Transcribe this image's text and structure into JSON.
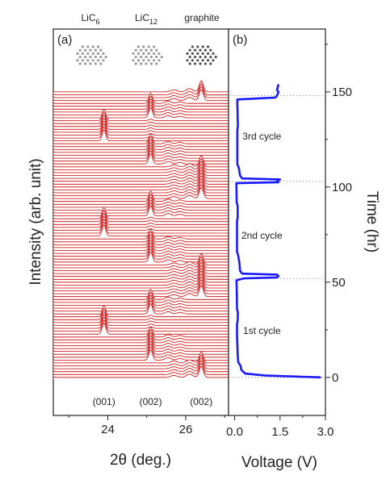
{
  "chart_data": [
    {
      "panel_label": "(a)",
      "type": "line",
      "xlabel": "2θ (deg.)",
      "ylabel": "Intensity (arb. unit)",
      "xlim": [
        22.6,
        27.1
      ],
      "xticks": [
        24,
        26
      ],
      "phases": [
        {
          "label": "LiC",
          "sub": "6"
        },
        {
          "label": "LiC",
          "sub": "12"
        },
        {
          "label": "graphite",
          "sub": ""
        }
      ],
      "reflections": [
        {
          "label": "(001)",
          "x": 23.9
        },
        {
          "label": "(002)",
          "x": 25.1
        },
        {
          "label": "(002)",
          "x": 26.4
        }
      ],
      "stack": {
        "count": 100,
        "time_range_hr": [
          0,
          150
        ]
      },
      "series_color": "#cc0000"
    },
    {
      "panel_label": "(b)",
      "type": "line",
      "xlabel": "Voltage (V)",
      "ylabel": "Time (hr)",
      "xlim": [
        -0.2,
        3.0
      ],
      "ylim": [
        -20,
        183
      ],
      "xticks": [
        0.0,
        1.5,
        3.0
      ],
      "xtick_labels": [
        "0.0",
        "1.5",
        "3.0"
      ],
      "yticks": [
        0,
        50,
        100,
        150
      ],
      "yticks_minor": [
        25,
        75,
        125,
        175
      ],
      "series": [
        {
          "color": "#1a1aff",
          "points": [
            [
              2.85,
              0
            ],
            [
              1.0,
              1
            ],
            [
              0.35,
              2
            ],
            [
              0.22,
              4
            ],
            [
              0.2,
              6
            ],
            [
              0.12,
              8
            ],
            [
              0.1,
              12
            ],
            [
              0.08,
              22
            ],
            [
              0.08,
              28
            ],
            [
              0.1,
              30
            ],
            [
              0.11,
              34
            ],
            [
              0.08,
              36
            ],
            [
              0.07,
              48
            ],
            [
              0.06,
              51
            ],
            [
              0.3,
              52
            ],
            [
              1.4,
              52.5
            ],
            [
              1.45,
              53.2
            ],
            [
              1.4,
              54
            ],
            [
              0.25,
              54.5
            ],
            [
              0.18,
              56
            ],
            [
              0.16,
              60
            ],
            [
              0.12,
              64
            ],
            [
              0.08,
              66
            ],
            [
              0.08,
              82
            ],
            [
              0.1,
              84
            ],
            [
              0.1,
              90
            ],
            [
              0.07,
              92
            ],
            [
              0.06,
              100
            ],
            [
              0.06,
              102
            ],
            [
              1.45,
              102.5
            ],
            [
              1.4,
              103
            ],
            [
              1.5,
              104
            ],
            [
              0.25,
              104.5
            ],
            [
              0.18,
              106
            ],
            [
              0.14,
              110
            ],
            [
              0.09,
              112
            ],
            [
              0.09,
              130
            ],
            [
              0.11,
              132
            ],
            [
              0.09,
              144
            ],
            [
              0.09,
              146
            ],
            [
              1.35,
              147
            ],
            [
              1.4,
              148
            ],
            [
              1.45,
              150
            ],
            [
              1.4,
              151
            ],
            [
              1.45,
              154
            ]
          ]
        }
      ],
      "annotations": [
        {
          "text": "1st cycle",
          "x": 0.9,
          "y": 25
        },
        {
          "text": "2nd cycle",
          "x": 0.9,
          "y": 75
        },
        {
          "text": "3rd cycle",
          "x": 0.9,
          "y": 127
        }
      ],
      "reference_lines_y": [
        0,
        52,
        103,
        148
      ]
    }
  ]
}
